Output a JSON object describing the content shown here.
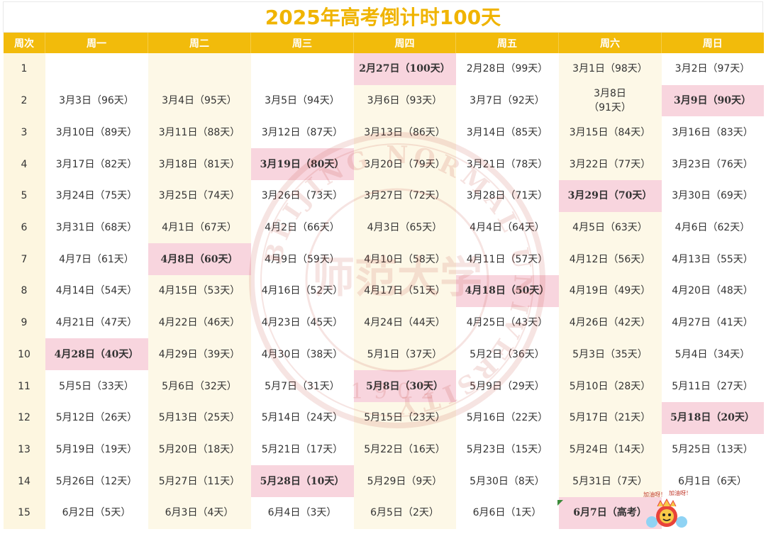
{
  "title": "2025年高考倒计时100天",
  "headers": [
    "周次",
    "周一",
    "周二",
    "周三",
    "周四",
    "周五",
    "周六",
    "周日"
  ],
  "rows": [
    [
      "1",
      "",
      "",
      "",
      "2月27日（100天）",
      "2月28日（99天）",
      "3月1日（98天）",
      "3月2日（97天）"
    ],
    [
      "2",
      "3月3日（96天）",
      "3月4日（95天）",
      "3月5日（94天）",
      "3月6日（93天）",
      "3月7日（92天）",
      "3月8日\n（91天）",
      "3月9日（90天）"
    ],
    [
      "3",
      "3月10日（89天）",
      "3月11日（88天）",
      "3月12日（87天）",
      "3月13日（86天）",
      "3月14日（85天）",
      "3月15日（84天）",
      "3月16日（83天）"
    ],
    [
      "4",
      "3月17日（82天）",
      "3月18日（81天）",
      "3月19日（80天）",
      "3月20日（79天）",
      "3月21日（78天）",
      "3月22日（77天）",
      "3月23日（76天）"
    ],
    [
      "5",
      "3月24日（75天）",
      "3月25日（74天）",
      "3月26日（73天）",
      "3月27日（72天）",
      "3月28日（71天）",
      "3月29日（70天）",
      "3月30日（69天）"
    ],
    [
      "6",
      "3月31日（68天）",
      "4月1日（67天）",
      "4月2日（66天）",
      "4月3日（65天）",
      "4月4日（64天）",
      "4月5日（63天）",
      "4月6日（62天）"
    ],
    [
      "7",
      "4月7日（61天）",
      "4月8日（60天）",
      "4月9日（59天）",
      "4月10日（58天）",
      "4月11日（57天）",
      "4月12日（56天）",
      "4月13日（55天）"
    ],
    [
      "8",
      "4月14日（54天）",
      "4月15日（53天）",
      "4月16日（52天）",
      "4月17日（51天）",
      "4月18日（50天）",
      "4月19日（49天）",
      "4月20日（48天）"
    ],
    [
      "9",
      "4月21日（47天）",
      "4月22日（46天）",
      "4月23日（45天）",
      "4月24日（44天）",
      "4月25日（43天）",
      "4月26日（42天）",
      "4月27日（41天）"
    ],
    [
      "10",
      "4月28日（40天）",
      "4月29日（39天）",
      "4月30日（38天）",
      "5月1日（37天）",
      "5月2日（36天）",
      "5月3日（35天）",
      "5月4日（34天）"
    ],
    [
      "11",
      "5月5日（33天）",
      "5月6日（32天）",
      "5月7日（31天）",
      "5月8日（30天）",
      "5月9日（29天）",
      "5月10日（28天）",
      "5月11日（27天）"
    ],
    [
      "12",
      "5月12日（26天）",
      "5月13日（25天）",
      "5月14日（24天）",
      "5月15日（23天）",
      "5月16日（22天）",
      "5月17日（21天）",
      "5月18日（20天）"
    ],
    [
      "13",
      "5月19日（19天）",
      "5月20日（18天）",
      "5月21日（17天）",
      "5月22日（16天）",
      "5月23日（15天）",
      "5月24日（14天）",
      "5月25日（13天）"
    ],
    [
      "14",
      "5月26日（12天）",
      "5月27日（11天）",
      "5月28日（10天）",
      "5月29日（9天）",
      "5月30日（8天）",
      "5月31日（7天）",
      "6月1日（6天）"
    ],
    [
      "15",
      "6月2日（5天）",
      "6月3日（4天）",
      "6月4日（3天）",
      "6月5日（2天）",
      "6月6日（1天）",
      "6月7日（高考）",
      ""
    ]
  ],
  "highlights": [
    [
      0,
      4
    ],
    [
      1,
      7
    ],
    [
      3,
      3
    ],
    [
      4,
      6
    ],
    [
      6,
      2
    ],
    [
      7,
      5
    ],
    [
      9,
      1
    ],
    [
      10,
      4
    ],
    [
      11,
      7
    ],
    [
      13,
      3
    ],
    [
      14,
      6
    ]
  ],
  "colors": {
    "title": "#f0b400",
    "header_bg": "#f2bb0b",
    "highlight_bg": "#f8d5de",
    "cream_bg": "#fdf8e7",
    "watermark": "#c0392b"
  },
  "watermark": {
    "ring_text": "BEIJING NORMAL UNIVERSITY",
    "center_text": "师范大学",
    "year_text": "1902"
  },
  "mascot": {
    "speech_left": "加油呀！",
    "speech_right": "加油呀！"
  }
}
